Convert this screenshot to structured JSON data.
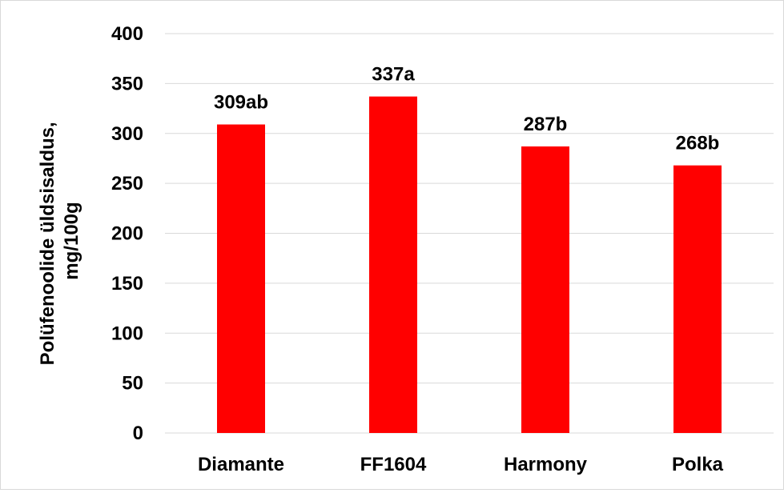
{
  "chart_data": {
    "type": "bar",
    "title": "",
    "xlabel": "",
    "ylabel_lines": [
      "Polüfenoolide üldsisaldus,",
      "mg/100g"
    ],
    "categories": [
      "Diamante",
      "FF1604",
      "Harmony",
      "Polka"
    ],
    "values": [
      309,
      337,
      287,
      268
    ],
    "data_labels": [
      "309ab",
      "337a",
      "287b",
      "268b"
    ],
    "ylim": [
      0,
      400
    ],
    "y_ticks": [
      0,
      50,
      100,
      150,
      200,
      250,
      300,
      350,
      400
    ],
    "grid": true,
    "legend": false,
    "bar_color": "#ff0000",
    "grid_color": "#d9d9d9"
  }
}
